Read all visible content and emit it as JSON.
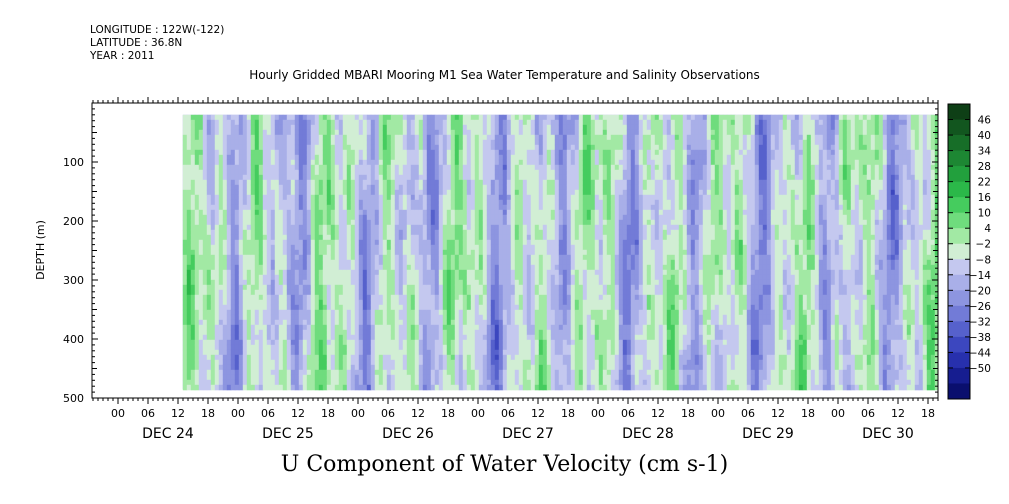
{
  "header": {
    "longitude": "LONGITUDE : 122W(-122)",
    "latitude": "LATITUDE : 36.8N",
    "year": "YEAR : 2011"
  },
  "title": "Hourly Gridded MBARI Mooring M1 Sea Water Temperature and Salinity Observations",
  "footer_label": "U Component of Water Velocity (cm s-1)",
  "chart_data": {
    "type": "heatmap",
    "title": "Hourly Gridded MBARI Mooring M1 Sea Water Temperature and Salinity Observations",
    "xlabel": "",
    "ylabel": "DEPTH (m)",
    "colorbar_label": "U Component of Water Velocity (cm s-1)",
    "ylim": [
      500,
      0
    ],
    "y_ticks": [
      100,
      200,
      300,
      400,
      500
    ],
    "hour_ticks": [
      "00",
      "06",
      "12",
      "18",
      "00",
      "06",
      "12",
      "18",
      "00",
      "06",
      "12",
      "18",
      "00",
      "06",
      "12",
      "18",
      "00",
      "06",
      "12",
      "18",
      "00",
      "06",
      "12",
      "18",
      "00",
      "06",
      "12",
      "18"
    ],
    "day_labels": [
      "DEC 24",
      "DEC 25",
      "DEC 26",
      "DEC 27",
      "DEC 28",
      "DEC 29",
      "DEC 30"
    ],
    "colorbar_levels": [
      46,
      40,
      34,
      28,
      22,
      16,
      10,
      4,
      -2,
      -8,
      -14,
      -20,
      -26,
      -32,
      -38,
      -44,
      -50
    ],
    "colorbar_colors": [
      "#0e3f16",
      "#12561f",
      "#176e28",
      "#1d8733",
      "#22a03d",
      "#2bb849",
      "#45cc5e",
      "#6fdc7d",
      "#a2e9a4",
      "#d1eed4",
      "#c4c8ef",
      "#a9afe8",
      "#8d95e0",
      "#727bd7",
      "#5661cc",
      "#3c47bf",
      "#2730ad",
      "#161d90",
      "#0a0f6e"
    ],
    "data_extent": {
      "day_start": 0.54,
      "day_end": 7.01,
      "depth_top": 20,
      "depth_bottom": 485
    }
  }
}
